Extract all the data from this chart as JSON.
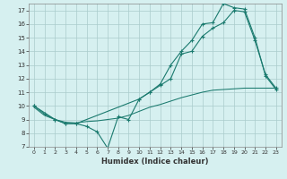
{
  "xlabel": "Humidex (Indice chaleur)",
  "bg_color": "#d6f0f0",
  "grid_color": "#aacccc",
  "line_color": "#1a7a6e",
  "xlim": [
    -0.5,
    23.5
  ],
  "ylim": [
    7,
    17.5
  ],
  "xticks": [
    0,
    1,
    2,
    3,
    4,
    5,
    6,
    7,
    8,
    9,
    10,
    11,
    12,
    13,
    14,
    15,
    16,
    17,
    18,
    19,
    20,
    21,
    22,
    23
  ],
  "yticks": [
    7,
    8,
    9,
    10,
    11,
    12,
    13,
    14,
    15,
    16,
    17
  ],
  "line1_x": [
    0,
    1,
    2,
    3,
    4,
    5,
    6,
    7,
    8,
    9,
    10,
    11,
    12,
    13,
    14,
    15,
    16,
    17,
    18,
    19,
    20,
    21,
    22,
    23
  ],
  "line1_y": [
    10.0,
    9.4,
    9.0,
    8.7,
    8.7,
    8.5,
    8.1,
    6.9,
    9.2,
    9.0,
    10.5,
    11.0,
    11.5,
    12.0,
    13.8,
    14.0,
    15.1,
    15.7,
    16.1,
    17.0,
    16.9,
    14.8,
    12.3,
    11.3
  ],
  "line2_x": [
    0,
    2,
    3,
    4,
    10,
    11,
    12,
    13,
    14,
    15,
    16,
    17,
    18,
    19,
    20,
    21,
    22,
    23
  ],
  "line2_y": [
    10.0,
    9.0,
    8.7,
    8.7,
    10.5,
    11.0,
    11.6,
    13.0,
    14.0,
    14.8,
    16.0,
    16.1,
    17.5,
    17.2,
    17.1,
    15.0,
    12.2,
    11.2
  ],
  "line3_x": [
    0,
    1,
    2,
    3,
    4,
    5,
    6,
    7,
    8,
    9,
    10,
    11,
    12,
    13,
    14,
    15,
    16,
    17,
    18,
    19,
    20,
    21,
    22,
    23
  ],
  "line3_y": [
    9.9,
    9.3,
    9.0,
    8.8,
    8.75,
    8.85,
    8.9,
    9.0,
    9.1,
    9.3,
    9.6,
    9.9,
    10.1,
    10.35,
    10.6,
    10.8,
    11.0,
    11.15,
    11.2,
    11.25,
    11.3,
    11.3,
    11.3,
    11.3
  ]
}
